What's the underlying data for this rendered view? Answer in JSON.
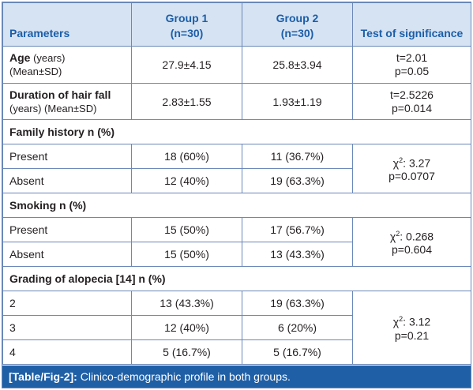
{
  "header": {
    "parameters": "Parameters",
    "group1_line1": "Group 1",
    "group1_line2": "(n=30)",
    "group2_line1": "Group 2",
    "group2_line2": "(n=30)",
    "test": "Test of significance"
  },
  "rows": {
    "age": {
      "label_bold": "Age",
      "label_rest": " (years)",
      "label_line2": "(Mean±SD)",
      "g1": "27.9±4.15",
      "g2": "25.8±3.94",
      "test_line1": "t=2.01",
      "test_line2": "p=0.05"
    },
    "duration": {
      "label_bold": "Duration of hair fall",
      "label_line2": "(years) (Mean±SD)",
      "g1": "2.83±1.55",
      "g2": "1.93±1.19",
      "test_line1": "t=2.5226",
      "test_line2": "p=0.014"
    }
  },
  "family": {
    "section": "Family history n (%)",
    "present": {
      "label": "Present",
      "g1": "18 (60%)",
      "g2": "11 (36.7%)"
    },
    "absent": {
      "label": "Absent",
      "g1": "12 (40%)",
      "g2": "19 (63.3%)"
    },
    "chi_prefix": "χ",
    "chi_sup": "2",
    "chi_value": ": 3.27",
    "p": "p=0.0707"
  },
  "smoking": {
    "section": "Smoking n (%)",
    "present": {
      "label": "Present",
      "g1": "15 (50%)",
      "g2": "17 (56.7%)"
    },
    "absent": {
      "label": "Absent",
      "g1": "15 (50%)",
      "g2": "13 (43.3%)"
    },
    "chi_prefix": "χ",
    "chi_sup": "2",
    "chi_value": ": 0.268",
    "p": "p=0.604"
  },
  "grading": {
    "section": "Grading of alopecia [14] n (%)",
    "r2": {
      "label": "2",
      "g1": "13 (43.3%)",
      "g2": "19 (63.3%)"
    },
    "r3": {
      "label": "3",
      "g1": "12 (40%)",
      "g2": "6 (20%)"
    },
    "r4": {
      "label": "4",
      "g1": "5 (16.7%)",
      "g2": "5 (16.7%)"
    },
    "chi_prefix": "χ",
    "chi_sup": "2",
    "chi_value": ": 3.12",
    "p": "p=0.21"
  },
  "caption": {
    "ref": "[Table/Fig-2]:",
    "text": " Clinico-demographic profile in both groups."
  },
  "colors": {
    "border": "#6a88b8",
    "header_bg": "#d6e3f3",
    "header_text": "#1b5ea8",
    "caption_bg": "#1f5fa6"
  }
}
